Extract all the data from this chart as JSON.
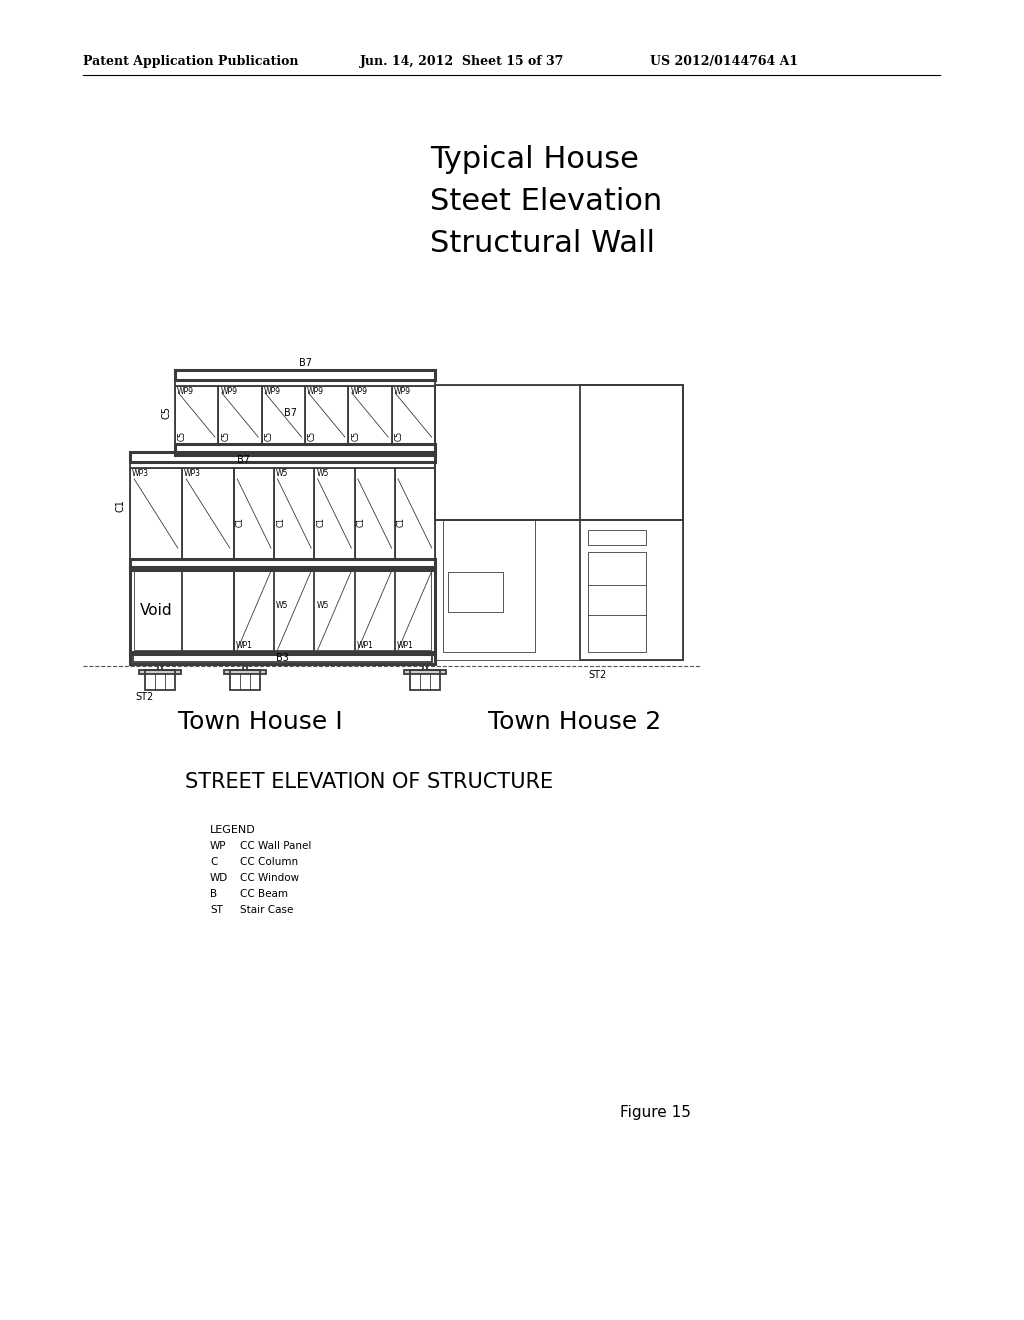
{
  "bg_color": "#ffffff",
  "header_left": "Patent Application Publication",
  "header_mid": "Jun. 14, 2012  Sheet 15 of 37",
  "header_right": "US 2012/0144764 A1",
  "title_lines": [
    "Typical House",
    "Steet Elevation",
    "Structural Wall"
  ],
  "label_townhouse1": "Town House I",
  "label_townhouse2": "Town House 2",
  "label_street_elev": "STREET ELEVATION OF STRUCTURE",
  "legend_title": "LEGEND",
  "legend_items": [
    [
      "WP",
      "CC Wall Panel"
    ],
    [
      "C",
      "CC Column"
    ],
    [
      "WD",
      "CC Window"
    ],
    [
      "B",
      "CC Beam"
    ],
    [
      "ST",
      "Stair Case"
    ]
  ],
  "figure_label": "Figure 15",
  "line_color": "#3a3a3a",
  "line_width": 1.3,
  "thin_line": 0.6,
  "thick_line": 2.2
}
